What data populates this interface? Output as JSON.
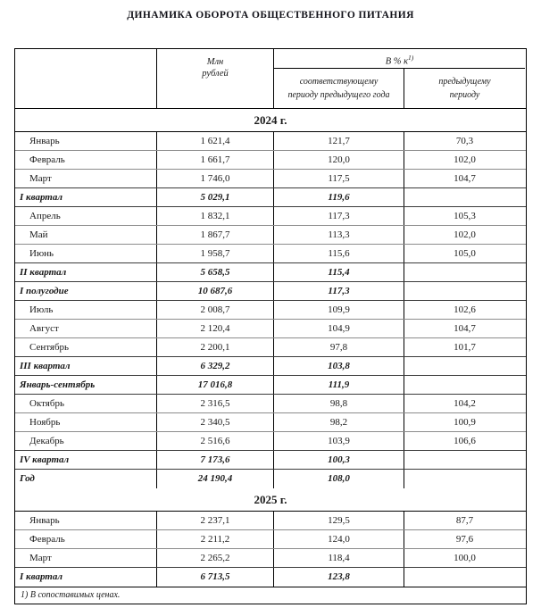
{
  "title": "ДИНАМИКА ОБОРОТА ОБЩЕСТВЕННОГО ПИТАНИЯ",
  "table": {
    "header": {
      "unit_line1": "Млн",
      "unit_line2": "рублей",
      "percent_label": "В % к",
      "percent_sup": "1)",
      "col_same_line1": "соответствующему",
      "col_same_line2": "периоду предыдущего года",
      "col_prev_line1": "предыдущему",
      "col_prev_line2": "периоду"
    },
    "sections": [
      {
        "year_label": "2024 г.",
        "rows": [
          {
            "label": "Январь",
            "mln": "1 621,4",
            "yoy": "121,7",
            "prev": "70,3",
            "bold": false
          },
          {
            "label": "Февраль",
            "mln": "1 661,7",
            "yoy": "120,0",
            "prev": "102,0",
            "bold": false
          },
          {
            "label": "Март",
            "mln": "1 746,0",
            "yoy": "117,5",
            "prev": "104,7",
            "bold": false
          },
          {
            "label": "I квартал",
            "mln": "5 029,1",
            "yoy": "119,6",
            "prev": "",
            "bold": true
          },
          {
            "label": "Апрель",
            "mln": "1 832,1",
            "yoy": "117,3",
            "prev": "105,3",
            "bold": false
          },
          {
            "label": "Май",
            "mln": "1 867,7",
            "yoy": "113,3",
            "prev": "102,0",
            "bold": false
          },
          {
            "label": "Июнь",
            "mln": "1 958,7",
            "yoy": "115,6",
            "prev": "105,0",
            "bold": false
          },
          {
            "label": "II квартал",
            "mln": "5 658,5",
            "yoy": "115,4",
            "prev": "",
            "bold": true
          },
          {
            "label": "I полугодие",
            "mln": "10 687,6",
            "yoy": "117,3",
            "prev": "",
            "bold": true
          },
          {
            "label": "Июль",
            "mln": "2 008,7",
            "yoy": "109,9",
            "prev": "102,6",
            "bold": false
          },
          {
            "label": "Август",
            "mln": "2 120,4",
            "yoy": "104,9",
            "prev": "104,7",
            "bold": false
          },
          {
            "label": "Сентябрь",
            "mln": "2 200,1",
            "yoy": "97,8",
            "prev": "101,7",
            "bold": false
          },
          {
            "label": "III квартал",
            "mln": "6 329,2",
            "yoy": "103,8",
            "prev": "",
            "bold": true
          },
          {
            "label": "Январь-сентябрь",
            "mln": "17 016,8",
            "yoy": "111,9",
            "prev": "",
            "bold": true
          },
          {
            "label": "Октябрь",
            "mln": "2 316,5",
            "yoy": "98,8",
            "prev": "104,2",
            "bold": false
          },
          {
            "label": "Ноябрь",
            "mln": "2 340,5",
            "yoy": "98,2",
            "prev": "100,9",
            "bold": false
          },
          {
            "label": "Декабрь",
            "mln": "2 516,6",
            "yoy": "103,9",
            "prev": "106,6",
            "bold": false
          },
          {
            "label": "IV квартал",
            "mln": "7 173,6",
            "yoy": "100,3",
            "prev": "",
            "bold": true
          },
          {
            "label": "Год",
            "mln": "24 190,4",
            "yoy": "108,0",
            "prev": "",
            "bold": true
          }
        ]
      },
      {
        "year_label": "2025 г.",
        "rows": [
          {
            "label": "Январь",
            "mln": "2 237,1",
            "yoy": "129,5",
            "prev": "87,7",
            "bold": false
          },
          {
            "label": "Февраль",
            "mln": "2 211,2",
            "yoy": "124,0",
            "prev": "97,6",
            "bold": false
          },
          {
            "label": "Март",
            "mln": "2 265,2",
            "yoy": "118,4",
            "prev": "100,0",
            "bold": false
          },
          {
            "label": "I квартал",
            "mln": "6 713,5",
            "yoy": "123,8",
            "prev": "",
            "bold": true
          }
        ]
      }
    ],
    "footnote": "1) В сопоставимых ценах."
  }
}
